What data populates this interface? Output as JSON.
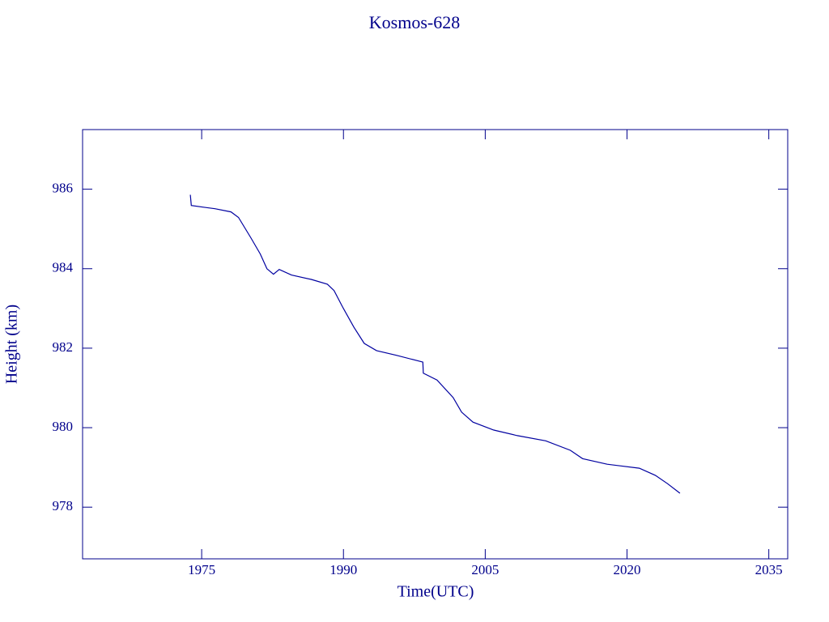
{
  "chart_data": {
    "type": "line",
    "title": "Kosmos-628",
    "xlabel": "Time(UTC)",
    "ylabel": "Height (km)",
    "color": "#0000a0",
    "xlim": [
      1962.4,
      2037.0
    ],
    "xticks": [
      1975,
      1990,
      2005,
      2020,
      2035
    ],
    "ylim": [
      976.7,
      987.5
    ],
    "yticks": [
      978,
      980,
      982,
      984,
      986
    ],
    "x": [
      1973.8,
      1973.9,
      1975.1,
      1976.4,
      1978.1,
      1978.9,
      1980.2,
      1981.2,
      1981.9,
      1982.6,
      1983.2,
      1984.5,
      1986.6,
      1988.3,
      1989.0,
      1989.9,
      1991.1,
      1992.2,
      1993.5,
      1995.6,
      1998.4,
      1998.45,
      1999.9,
      2001.6,
      2002.5,
      2003.7,
      2005.9,
      2008.4,
      2011.4,
      2014.0,
      2015.3,
      2017.9,
      2021.3,
      2023.0,
      2024.3,
      2025.6
    ],
    "values": [
      985.86,
      985.59,
      985.55,
      985.51,
      985.43,
      985.29,
      984.78,
      984.37,
      984.0,
      983.86,
      983.98,
      983.84,
      983.73,
      983.61,
      983.45,
      983.04,
      982.53,
      982.12,
      981.94,
      981.82,
      981.65,
      981.37,
      981.2,
      980.76,
      980.39,
      980.14,
      979.94,
      979.8,
      979.67,
      979.43,
      979.22,
      979.08,
      978.98,
      978.8,
      978.59,
      978.35
    ]
  }
}
